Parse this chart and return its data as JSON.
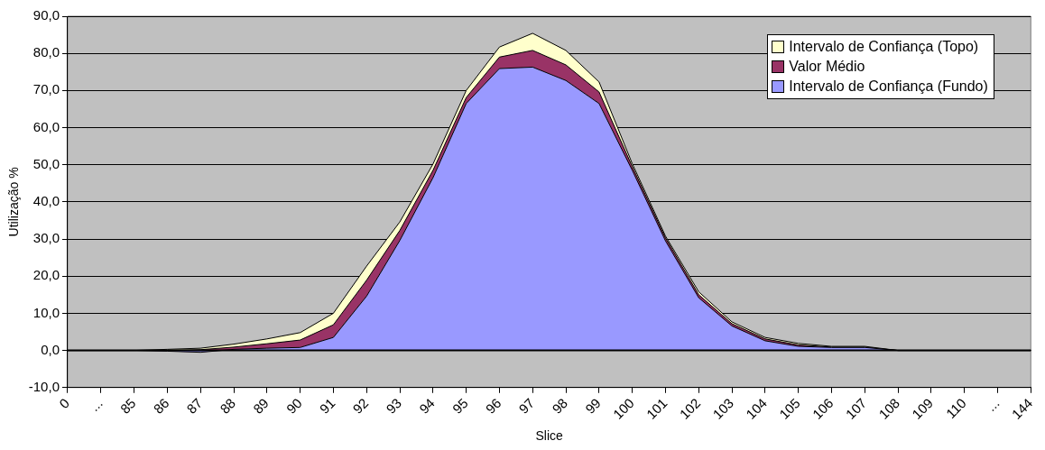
{
  "chart_data": {
    "type": "area",
    "stacked": true,
    "xlabel": "Slice",
    "ylabel": "Utilização %",
    "categories": [
      "0",
      "...",
      "85",
      "86",
      "87",
      "88",
      "89",
      "90",
      "91",
      "92",
      "93",
      "94",
      "95",
      "96",
      "97",
      "98",
      "99",
      "100",
      "101",
      "102",
      "103",
      "104",
      "105",
      "106",
      "107",
      "108",
      "109",
      "110",
      "...",
      "144"
    ],
    "series": [
      {
        "name": "Intervalo de Confiança (Fundo)",
        "color": "#9999ff",
        "values": [
          0,
          0,
          0,
          -0.2,
          -0.5,
          0.3,
          0.6,
          0.8,
          3.5,
          14.6,
          29.6,
          46.5,
          66.5,
          75.9,
          76.3,
          72.7,
          66.5,
          48.5,
          29.5,
          14.2,
          6.6,
          2.6,
          1.1,
          0.8,
          0.8,
          0,
          0,
          0,
          0,
          0
        ]
      },
      {
        "name": "Valor Médio",
        "color": "#993366",
        "values": [
          0,
          0,
          0,
          0.2,
          0.7,
          0.6,
          1.2,
          2.0,
          3.4,
          4.3,
          2.7,
          2.0,
          1.6,
          3.1,
          4.5,
          4.2,
          3.1,
          1.0,
          0.8,
          0.8,
          0.6,
          0.5,
          0.4,
          0.1,
          0.1,
          0,
          0,
          0,
          0,
          0
        ]
      },
      {
        "name": "Intervalo de Confiança (Topo)",
        "color": "#ffffcc",
        "values": [
          0,
          0,
          0,
          0.3,
          0.4,
          0.8,
          1.3,
          2.0,
          3.1,
          3.8,
          2.3,
          1.7,
          1.9,
          2.7,
          4.6,
          3.9,
          2.7,
          0.8,
          0.5,
          0.8,
          0.5,
          0.4,
          0.4,
          0.2,
          0.2,
          0,
          0,
          0,
          0,
          0
        ]
      }
    ],
    "ylim": [
      -10,
      90
    ],
    "yticks": [
      {
        "value": -10,
        "label": "-10,0"
      },
      {
        "value": 0,
        "label": "0,0"
      },
      {
        "value": 10,
        "label": "10,0"
      },
      {
        "value": 20,
        "label": "20,0"
      },
      {
        "value": 30,
        "label": "30,0"
      },
      {
        "value": 40,
        "label": "40,0"
      },
      {
        "value": 50,
        "label": "50,0"
      },
      {
        "value": 60,
        "label": "60,0"
      },
      {
        "value": 70,
        "label": "70,0"
      },
      {
        "value": 80,
        "label": "80,0"
      },
      {
        "value": 90,
        "label": "90,0"
      }
    ],
    "grid": "y",
    "legend": "top right"
  }
}
